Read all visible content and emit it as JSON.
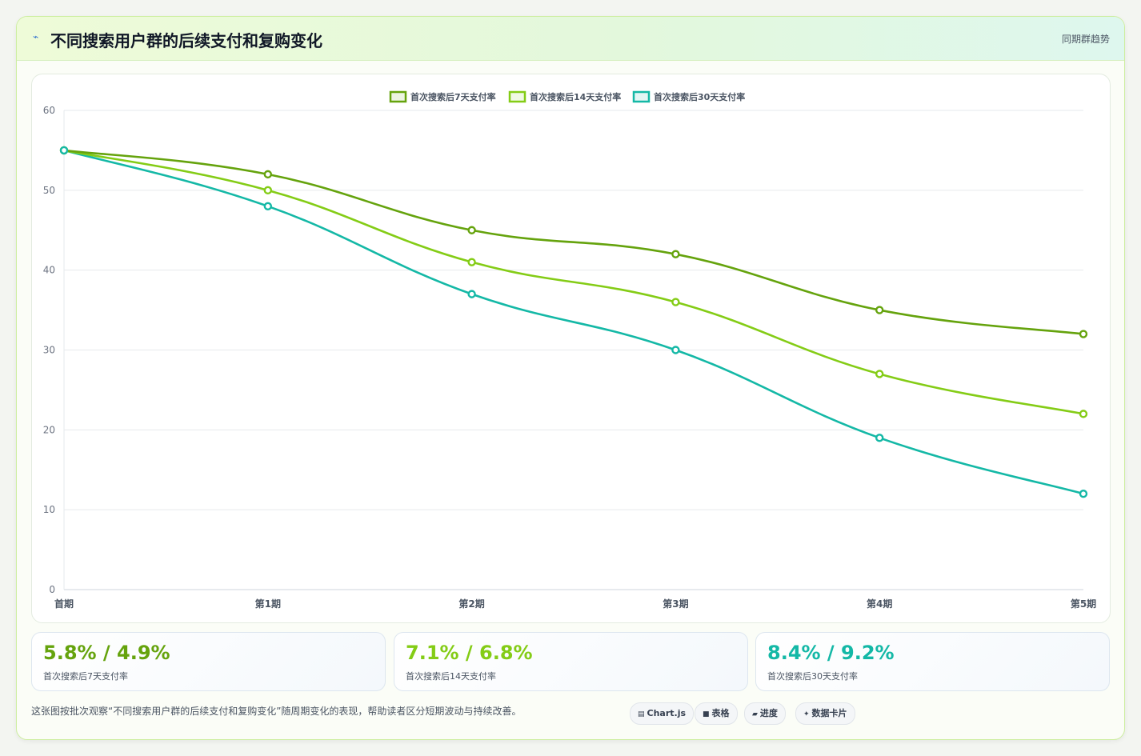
{
  "header": {
    "title_icon": "lightning-icon",
    "title": "不同搜索用户群的后续支付和复购变化",
    "badge": "同期群趋势"
  },
  "chart_data": {
    "type": "line",
    "title": "",
    "xlabel": "",
    "ylabel": "",
    "categories": [
      "首期",
      "第1期",
      "第2期",
      "第3期",
      "第4期",
      "第5期"
    ],
    "ylim": [
      0,
      60
    ],
    "yticks": [
      0,
      10,
      20,
      30,
      40,
      50,
      60
    ],
    "grid": true,
    "legend_position": "top-center",
    "series": [
      {
        "name": "首次搜索后7天支付率",
        "color": "#65a30d",
        "values": [
          55,
          52,
          45,
          42,
          35,
          32
        ]
      },
      {
        "name": "首次搜索后14天支付率",
        "color": "#84cc16",
        "values": [
          55,
          50,
          41,
          36,
          27,
          22
        ]
      },
      {
        "name": "首次搜索后30天支付率",
        "color": "#14b8a6",
        "values": [
          55,
          48,
          37,
          30,
          19,
          12
        ]
      }
    ]
  },
  "kpis": [
    {
      "value": "5.8% / 4.9%",
      "label": "首次搜索后7天支付率",
      "color": "#65a30d"
    },
    {
      "value": "7.1% / 6.8%",
      "label": "首次搜索后14天支付率",
      "color": "#84cc16"
    },
    {
      "value": "8.4% / 9.2%",
      "label": "首次搜索后30天支付率",
      "color": "#14b8a6"
    }
  ],
  "footnote": "这张图按批次观察“不同搜索用户群的后续支付和复购变化”随周期变化的表现，帮助读者区分短期波动与持续改善。",
  "chips": [
    {
      "icon": "chart-icon",
      "glyph": "▤",
      "label": "Chart.js"
    },
    {
      "icon": "table-icon",
      "glyph": "■",
      "label": "表格"
    },
    {
      "icon": "progress-icon",
      "glyph": "▰",
      "label": "进度"
    },
    {
      "icon": "sparkle-icon",
      "glyph": "✦",
      "label": "数据卡片"
    }
  ]
}
